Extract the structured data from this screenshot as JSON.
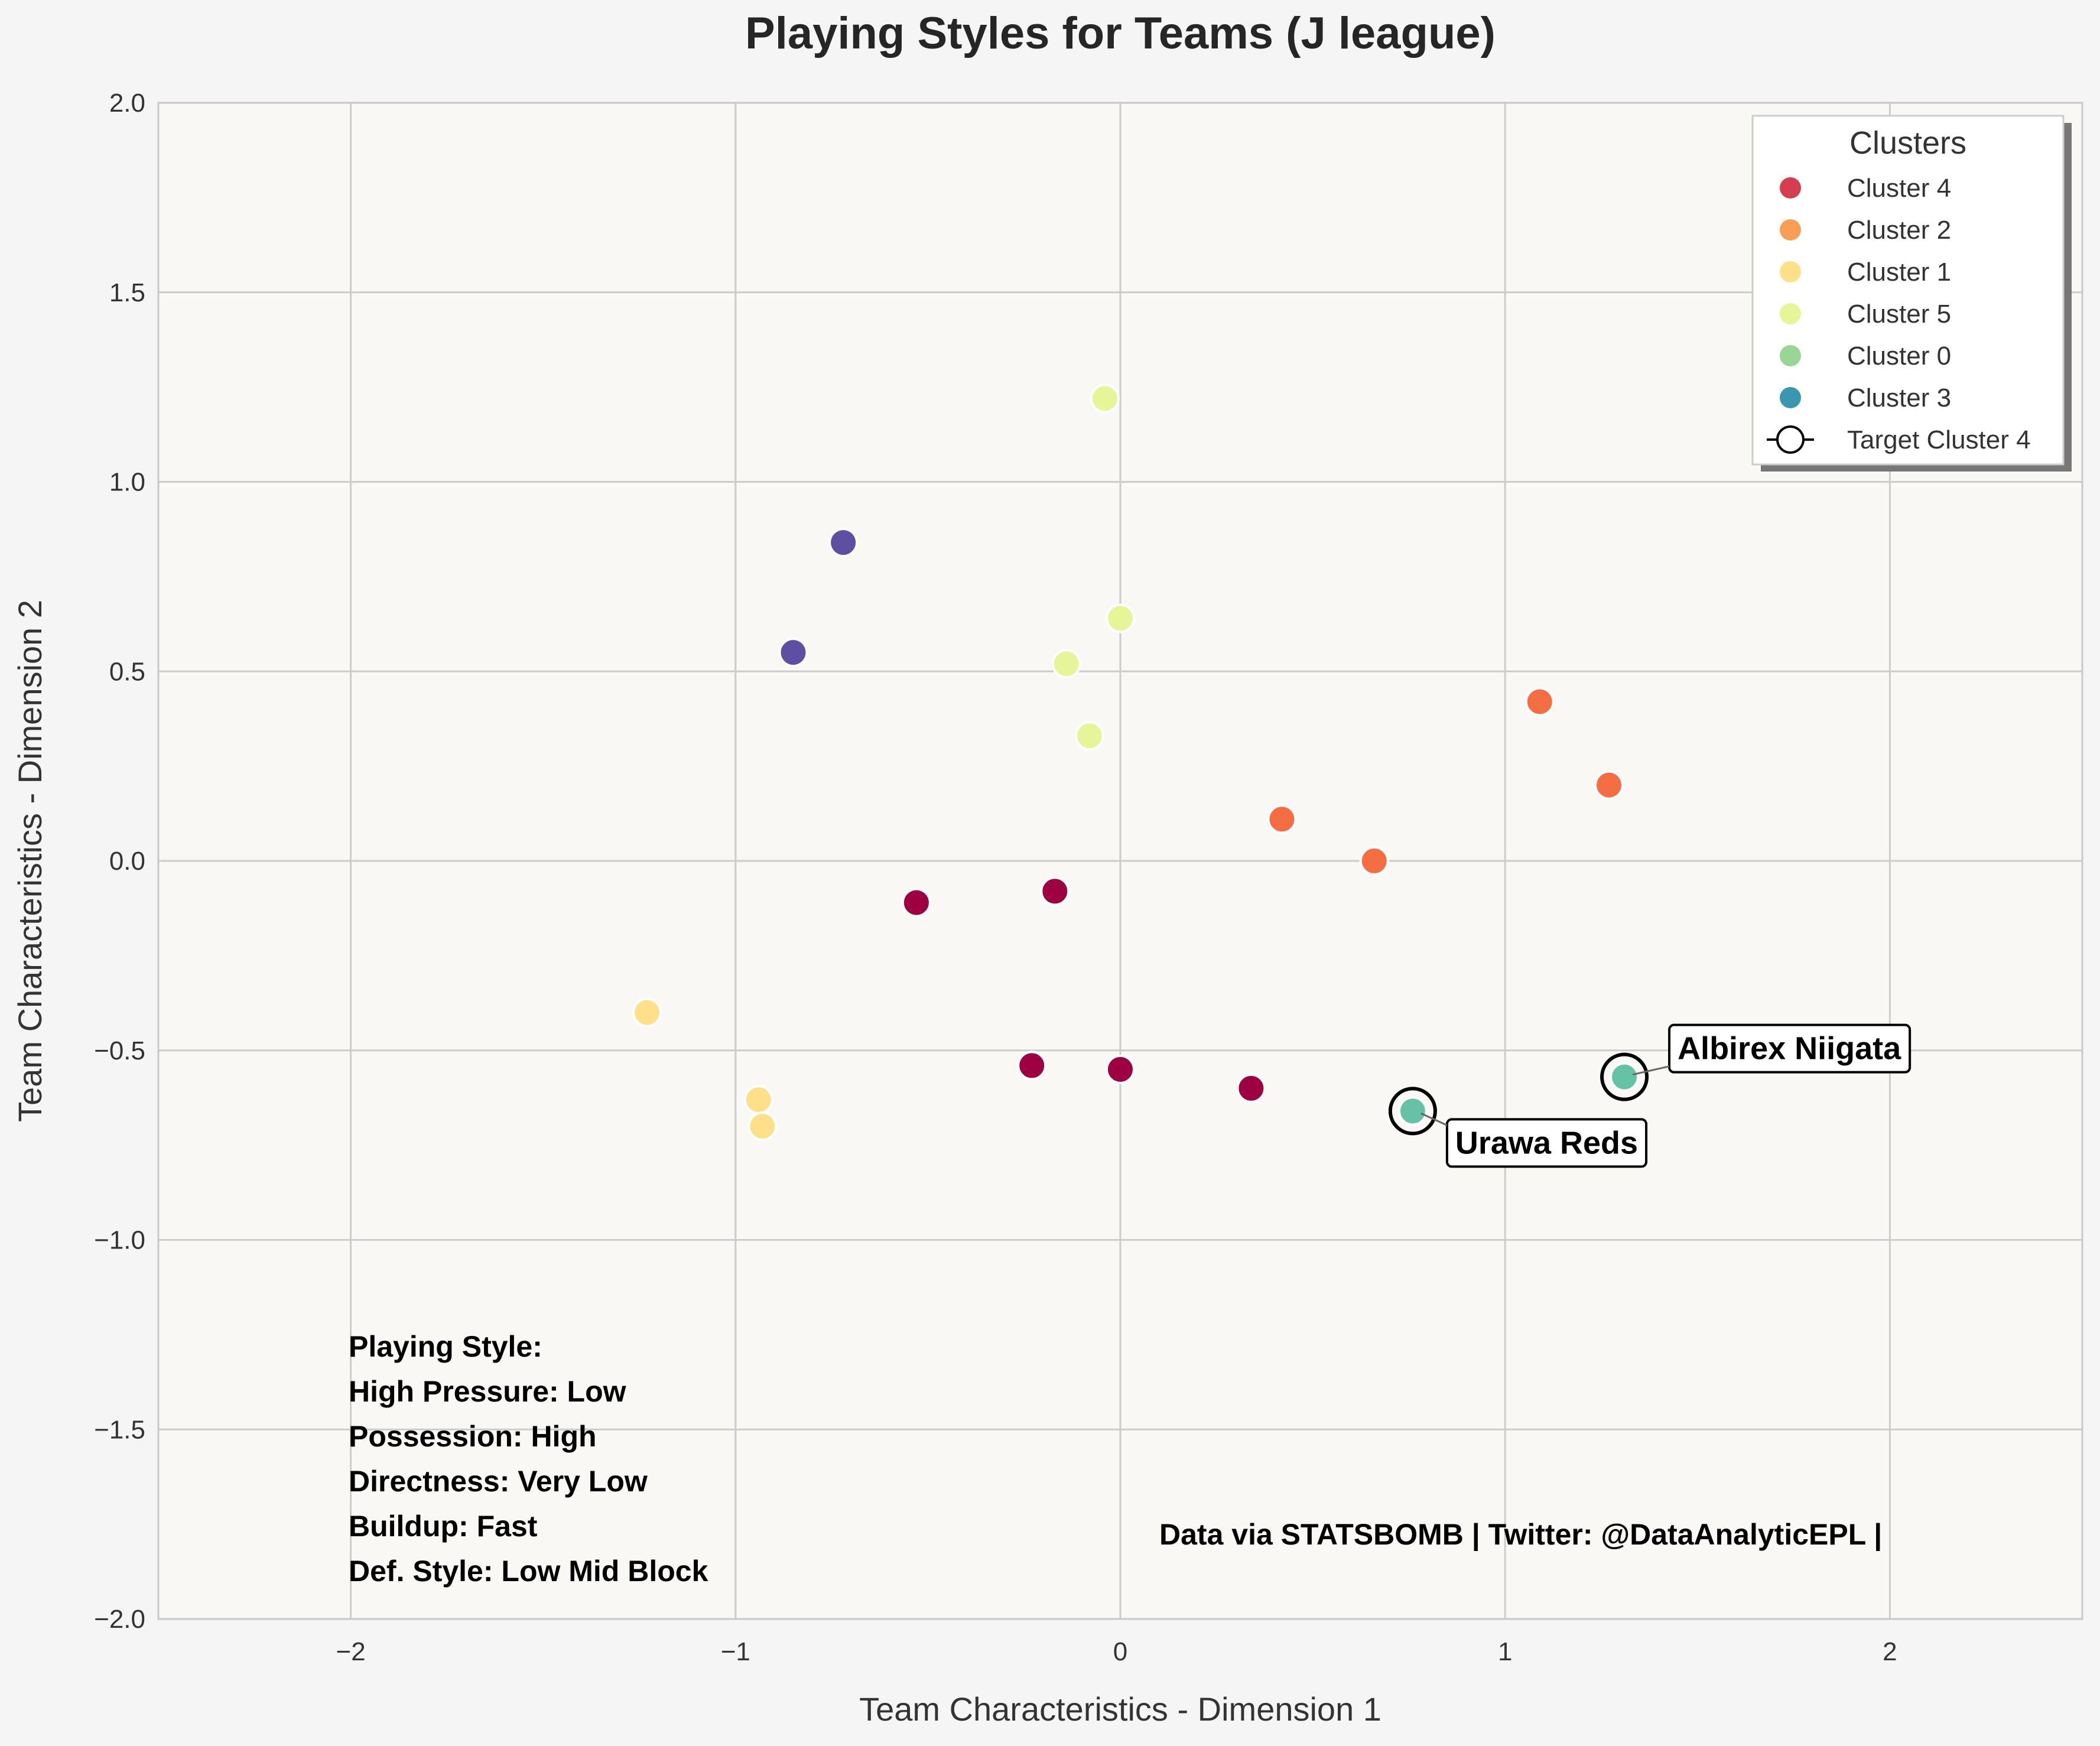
{
  "chart_data": {
    "type": "scatter",
    "title": "Playing Styles for Teams (J league)",
    "xlabel": "Team Characteristics - Dimension 1",
    "ylabel": "Team Characteristics - Dimension 2",
    "xlim": [
      -2.5,
      2.5
    ],
    "ylim": [
      -2.0,
      2.0
    ],
    "xticks": [
      -2,
      -1,
      0,
      1,
      2
    ],
    "xtick_labels": [
      "−2",
      "−1",
      "0",
      "1",
      "2"
    ],
    "yticks": [
      2.0,
      1.5,
      1.0,
      0.5,
      0.0,
      -0.5,
      -1.0,
      -1.5,
      -2.0
    ],
    "ytick_labels": [
      "2.0",
      "1.5",
      "1.0",
      "0.5",
      "0.0",
      "−0.5",
      "−1.0",
      "−1.5",
      "−2.0"
    ],
    "grid": true,
    "series": [
      {
        "cluster": "4",
        "color": "#9e0142",
        "points": [
          [
            -0.53,
            -0.11
          ],
          [
            -0.17,
            -0.08
          ],
          [
            -0.23,
            -0.54
          ],
          [
            0.0,
            -0.55
          ],
          [
            0.34,
            -0.6
          ]
        ]
      },
      {
        "cluster": "2",
        "color": "#f46d43",
        "points": [
          [
            1.09,
            0.42
          ],
          [
            1.27,
            0.2
          ],
          [
            0.42,
            0.11
          ],
          [
            0.66,
            0.0
          ]
        ]
      },
      {
        "cluster": "1",
        "color": "#fee08b",
        "points": [
          [
            -1.23,
            -0.4
          ],
          [
            -0.94,
            -0.63
          ],
          [
            -0.93,
            -0.7
          ]
        ]
      },
      {
        "cluster": "5",
        "color": "#e6f598",
        "points": [
          [
            -0.04,
            1.22
          ],
          [
            0.0,
            0.64
          ],
          [
            -0.14,
            0.52
          ],
          [
            -0.08,
            0.33
          ]
        ]
      },
      {
        "cluster": "0",
        "color": "#66c2a5",
        "points": [
          [
            1.31,
            -0.57
          ],
          [
            0.76,
            -0.66
          ]
        ]
      },
      {
        "cluster": "3",
        "color": "#5e4fa2",
        "points": [
          [
            -0.72,
            0.84
          ],
          [
            -0.85,
            0.55
          ]
        ]
      }
    ],
    "highlighted": [
      {
        "label": "Albirex Niigata",
        "x": 1.31,
        "y": -0.57
      },
      {
        "label": "Urawa Reds",
        "x": 0.76,
        "y": -0.66
      }
    ],
    "legend": {
      "title": "Clusters",
      "position": "top-right",
      "entries": [
        {
          "label": "Cluster 4",
          "color": "#d53e4f"
        },
        {
          "label": "Cluster 2",
          "color": "#f99e57"
        },
        {
          "label": "Cluster 1",
          "color": "#fee08b"
        },
        {
          "label": "Cluster 5",
          "color": "#e6f598"
        },
        {
          "label": "Cluster 0",
          "color": "#99d594"
        },
        {
          "label": "Cluster 3",
          "color": "#3b97b0"
        },
        {
          "label": "Target Cluster 4",
          "marker": "ring"
        }
      ]
    },
    "style_box": [
      "Playing Style:",
      "High Pressure: Low",
      "Possession: High",
      "Directness: Very Low",
      "Buildup: Fast",
      "Def. Style: Low Mid Block"
    ],
    "credit": "Data via STATSBOMB | Twitter: @DataAnalyticEPL |"
  }
}
